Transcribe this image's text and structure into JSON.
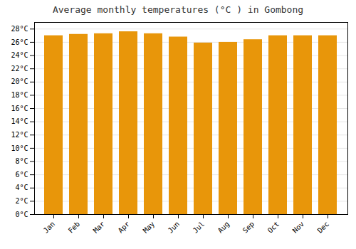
{
  "chart_data": {
    "type": "bar",
    "title": "Average monthly temperatures (°C ) in Gombong",
    "categories": [
      "Jan",
      "Feb",
      "Mar",
      "Apr",
      "May",
      "Jun",
      "Jul",
      "Aug",
      "Sep",
      "Oct",
      "Nov",
      "Dec"
    ],
    "values": [
      27.0,
      27.2,
      27.3,
      27.6,
      27.3,
      26.8,
      25.9,
      26.0,
      26.4,
      27.0,
      27.0,
      27.0
    ],
    "color": "#E8960A",
    "ylim": [
      0,
      29
    ],
    "yticks": [
      {
        "value": 0,
        "label": "0°C"
      },
      {
        "value": 2,
        "label": "2°C"
      },
      {
        "value": 4,
        "label": "4°C"
      },
      {
        "value": 6,
        "label": "6°C"
      },
      {
        "value": 8,
        "label": "8°C"
      },
      {
        "value": 10,
        "label": "10°C"
      },
      {
        "value": 12,
        "label": "12°C"
      },
      {
        "value": 14,
        "label": "14°C"
      },
      {
        "value": 16,
        "label": "16°C"
      },
      {
        "value": 18,
        "label": "18°C"
      },
      {
        "value": 20,
        "label": "20°C"
      },
      {
        "value": 22,
        "label": "22°C"
      },
      {
        "value": 24,
        "label": "24°C"
      },
      {
        "value": 26,
        "label": "26°C"
      },
      {
        "value": 28,
        "label": "28°C"
      }
    ],
    "grid": true
  }
}
